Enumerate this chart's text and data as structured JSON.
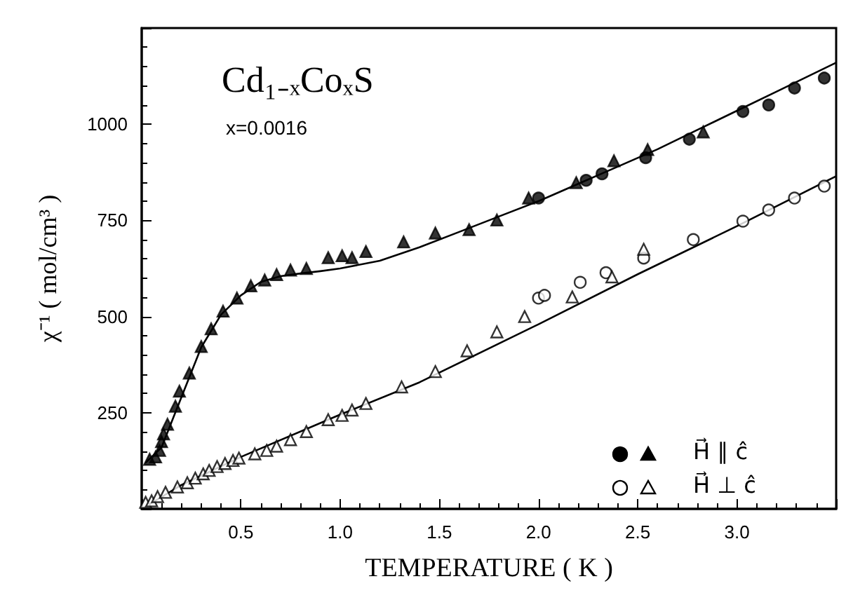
{
  "chart_data": {
    "type": "scatter",
    "xlabel": "TEMPERATURE ( K )",
    "ylabel": "χ⁻¹ ( mol/cm³ )",
    "annotations": [
      "Cd₁₋ₓCoₓS",
      "x=0.0016"
    ],
    "xlim": [
      0,
      3.5
    ],
    "xticks": [
      0.5,
      {
        "value": 1,
        "label": "1.0"
      },
      1.5,
      {
        "value": 2,
        "label": "2.0"
      },
      2.5,
      {
        "value": 3,
        "label": "3.0"
      }
    ],
    "ylim": [
      0,
      1250
    ],
    "yticks": [
      250,
      500,
      750,
      1000
    ],
    "legend": "bottom right",
    "grid": false,
    "series": [
      {
        "type": "scatter",
        "marker": "circle",
        "color": "#000000",
        "x": [
          2.0,
          2.24,
          2.32,
          2.54,
          2.76,
          3.03,
          3.16,
          3.29,
          3.44
        ],
        "values": [
          808,
          854,
          871,
          913,
          961,
          1033,
          1050,
          1094,
          1120
        ]
      },
      {
        "name": "H⃗ ∥ ĉ",
        "marker": "triangle",
        "color": "#000000",
        "x": [
          0.04,
          0.07,
          0.09,
          0.1,
          0.11,
          0.13,
          0.17,
          0.19,
          0.24,
          0.3,
          0.35,
          0.41,
          0.48,
          0.55,
          0.62,
          0.68,
          0.75,
          0.83,
          0.94,
          1.01,
          1.06,
          1.13,
          1.32,
          1.48,
          1.65,
          1.79,
          1.95,
          2.19,
          2.38,
          2.55,
          2.83
        ],
        "values": [
          129,
          135,
          152,
          175,
          195,
          220,
          267,
          306,
          353,
          422,
          468,
          514,
          548,
          580,
          595,
          609,
          621,
          625,
          653,
          658,
          653,
          669,
          694,
          717,
          726,
          751,
          808,
          848,
          905,
          934,
          980
        ]
      },
      {
        "type": "scatter",
        "marker": "circle",
        "color": "#ffffff",
        "x": [
          2.0,
          2.03,
          2.21,
          2.34,
          2.53,
          2.78,
          3.03,
          3.16,
          3.29,
          3.44
        ],
        "values": [
          548,
          555,
          589,
          614,
          652,
          700,
          748,
          777,
          808,
          839
        ]
      },
      {
        "name": "H⃗ ⊥ ĉ",
        "marker": "triangle",
        "color": "#ffffff",
        "x": [
          0.02,
          0.05,
          0.08,
          0.12,
          0.18,
          0.23,
          0.27,
          0.31,
          0.34,
          0.38,
          0.42,
          0.46,
          0.49,
          0.57,
          0.63,
          0.68,
          0.75,
          0.83,
          0.94,
          1.01,
          1.06,
          1.13,
          1.31,
          1.48,
          1.64,
          1.79,
          1.93,
          2.17,
          2.37,
          2.53
        ],
        "values": [
          17,
          21,
          32,
          43,
          57,
          68,
          80,
          91,
          100,
          110,
          118,
          126,
          132,
          143,
          152,
          163,
          180,
          201,
          232,
          243,
          257,
          274,
          317,
          357,
          411,
          460,
          500,
          551,
          603,
          675
        ]
      },
      {
        "type": "line",
        "marker": "none",
        "color": "#000000",
        "x": [
          0.02,
          0.1,
          0.2,
          0.3,
          0.4,
          0.5,
          0.6,
          0.7,
          0.8,
          0.9,
          1.0,
          1.2,
          1.4,
          1.6,
          1.8,
          2.0,
          2.2,
          2.4,
          2.6,
          2.8,
          3.0,
          3.2,
          3.5
        ],
        "values": [
          120,
          160,
          290,
          420,
          505,
          555,
          590,
          605,
          612,
          618,
          625,
          645,
          680,
          720,
          760,
          800,
          845,
          890,
          935,
          985,
          1035,
          1085,
          1160
        ]
      },
      {
        "type": "line",
        "marker": "none",
        "color": "#000000",
        "x": [
          0.0,
          0.2,
          0.5,
          1.0,
          1.4,
          2.0,
          2.5,
          3.0,
          3.5
        ],
        "values": [
          0,
          62,
          135,
          245,
          329,
          480,
          610,
          735,
          865
        ]
      }
    ]
  }
}
